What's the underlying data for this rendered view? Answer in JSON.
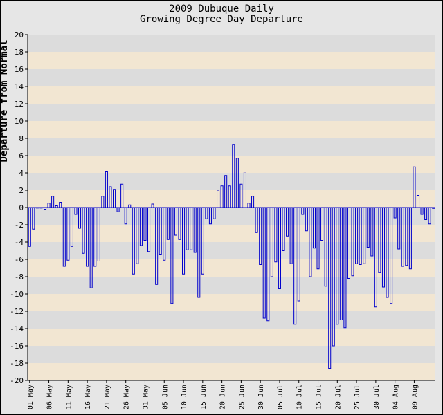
{
  "chart_data": {
    "type": "bar",
    "title": "2009 Dubuque Daily",
    "subtitle": "Growing Degree Day Departure",
    "xlabel": "",
    "ylabel": "Departure from Normal",
    "ylim": [
      -20,
      20
    ],
    "ytick_step": 2,
    "grid": true,
    "band_colors": [
      "#dcdcdc",
      "#f2e6d2"
    ],
    "bar_color": "#0000cc",
    "x_ticks": [
      "01 May",
      "06 May",
      "11 May",
      "16 May",
      "21 May",
      "26 May",
      "31 May",
      "05 Jun",
      "10 Jun",
      "15 Jun",
      "20 Jun",
      "25 Jun",
      "30 Jun",
      "05 Jul",
      "10 Jul",
      "15 Jul",
      "20 Jul",
      "25 Jul",
      "30 Jul",
      "04 Aug",
      "09 Aug"
    ],
    "x_tick_every": 5,
    "start_date": "2009-05-01",
    "values": [
      -4.5,
      -2.5,
      0,
      0,
      -0.2,
      0.5,
      1.3,
      0.2,
      0.6,
      -6.8,
      -6.1,
      -4.5,
      -0.8,
      -2.4,
      -5.3,
      -6.8,
      -9.3,
      -6.8,
      -6.2,
      1.3,
      4.2,
      2.4,
      2.1,
      -0.5,
      2.7,
      -1.9,
      0.3,
      -7.7,
      -6.5,
      -4.4,
      -3.8,
      -5.1,
      0.4,
      -8.9,
      -5.4,
      -6.1,
      -3.7,
      -11.1,
      -3.2,
      -3.7,
      -7.7,
      -4.9,
      -4.9,
      -5.2,
      -10.4,
      -7.7,
      -1.3,
      -1.9,
      -1.3,
      2.0,
      2.5,
      3.7,
      2.5,
      7.3,
      5.7,
      2.7,
      4.1,
      0.5,
      1.3,
      -2.9,
      -6.6,
      -12.8,
      -13.1,
      -8.0,
      -6.3,
      -9.4,
      -5.0,
      -3.3,
      -6.5,
      -13.5,
      -10.8,
      -0.8,
      -2.7,
      -8.0,
      -4.7,
      -7.1,
      -3.8,
      -9.1,
      -18.6,
      -16.0,
      -13.5,
      -13.0,
      -13.9,
      -8.2,
      -7.9,
      -6.5,
      -6.6,
      -6.5,
      -4.6,
      -5.6,
      -11.5,
      -7.5,
      -9.2,
      -10.4,
      -11.1,
      -1.2,
      -4.8,
      -6.8,
      -6.7,
      -7.1,
      4.7,
      1.4,
      -0.8,
      -1.4,
      -1.9,
      -0.1
    ]
  }
}
